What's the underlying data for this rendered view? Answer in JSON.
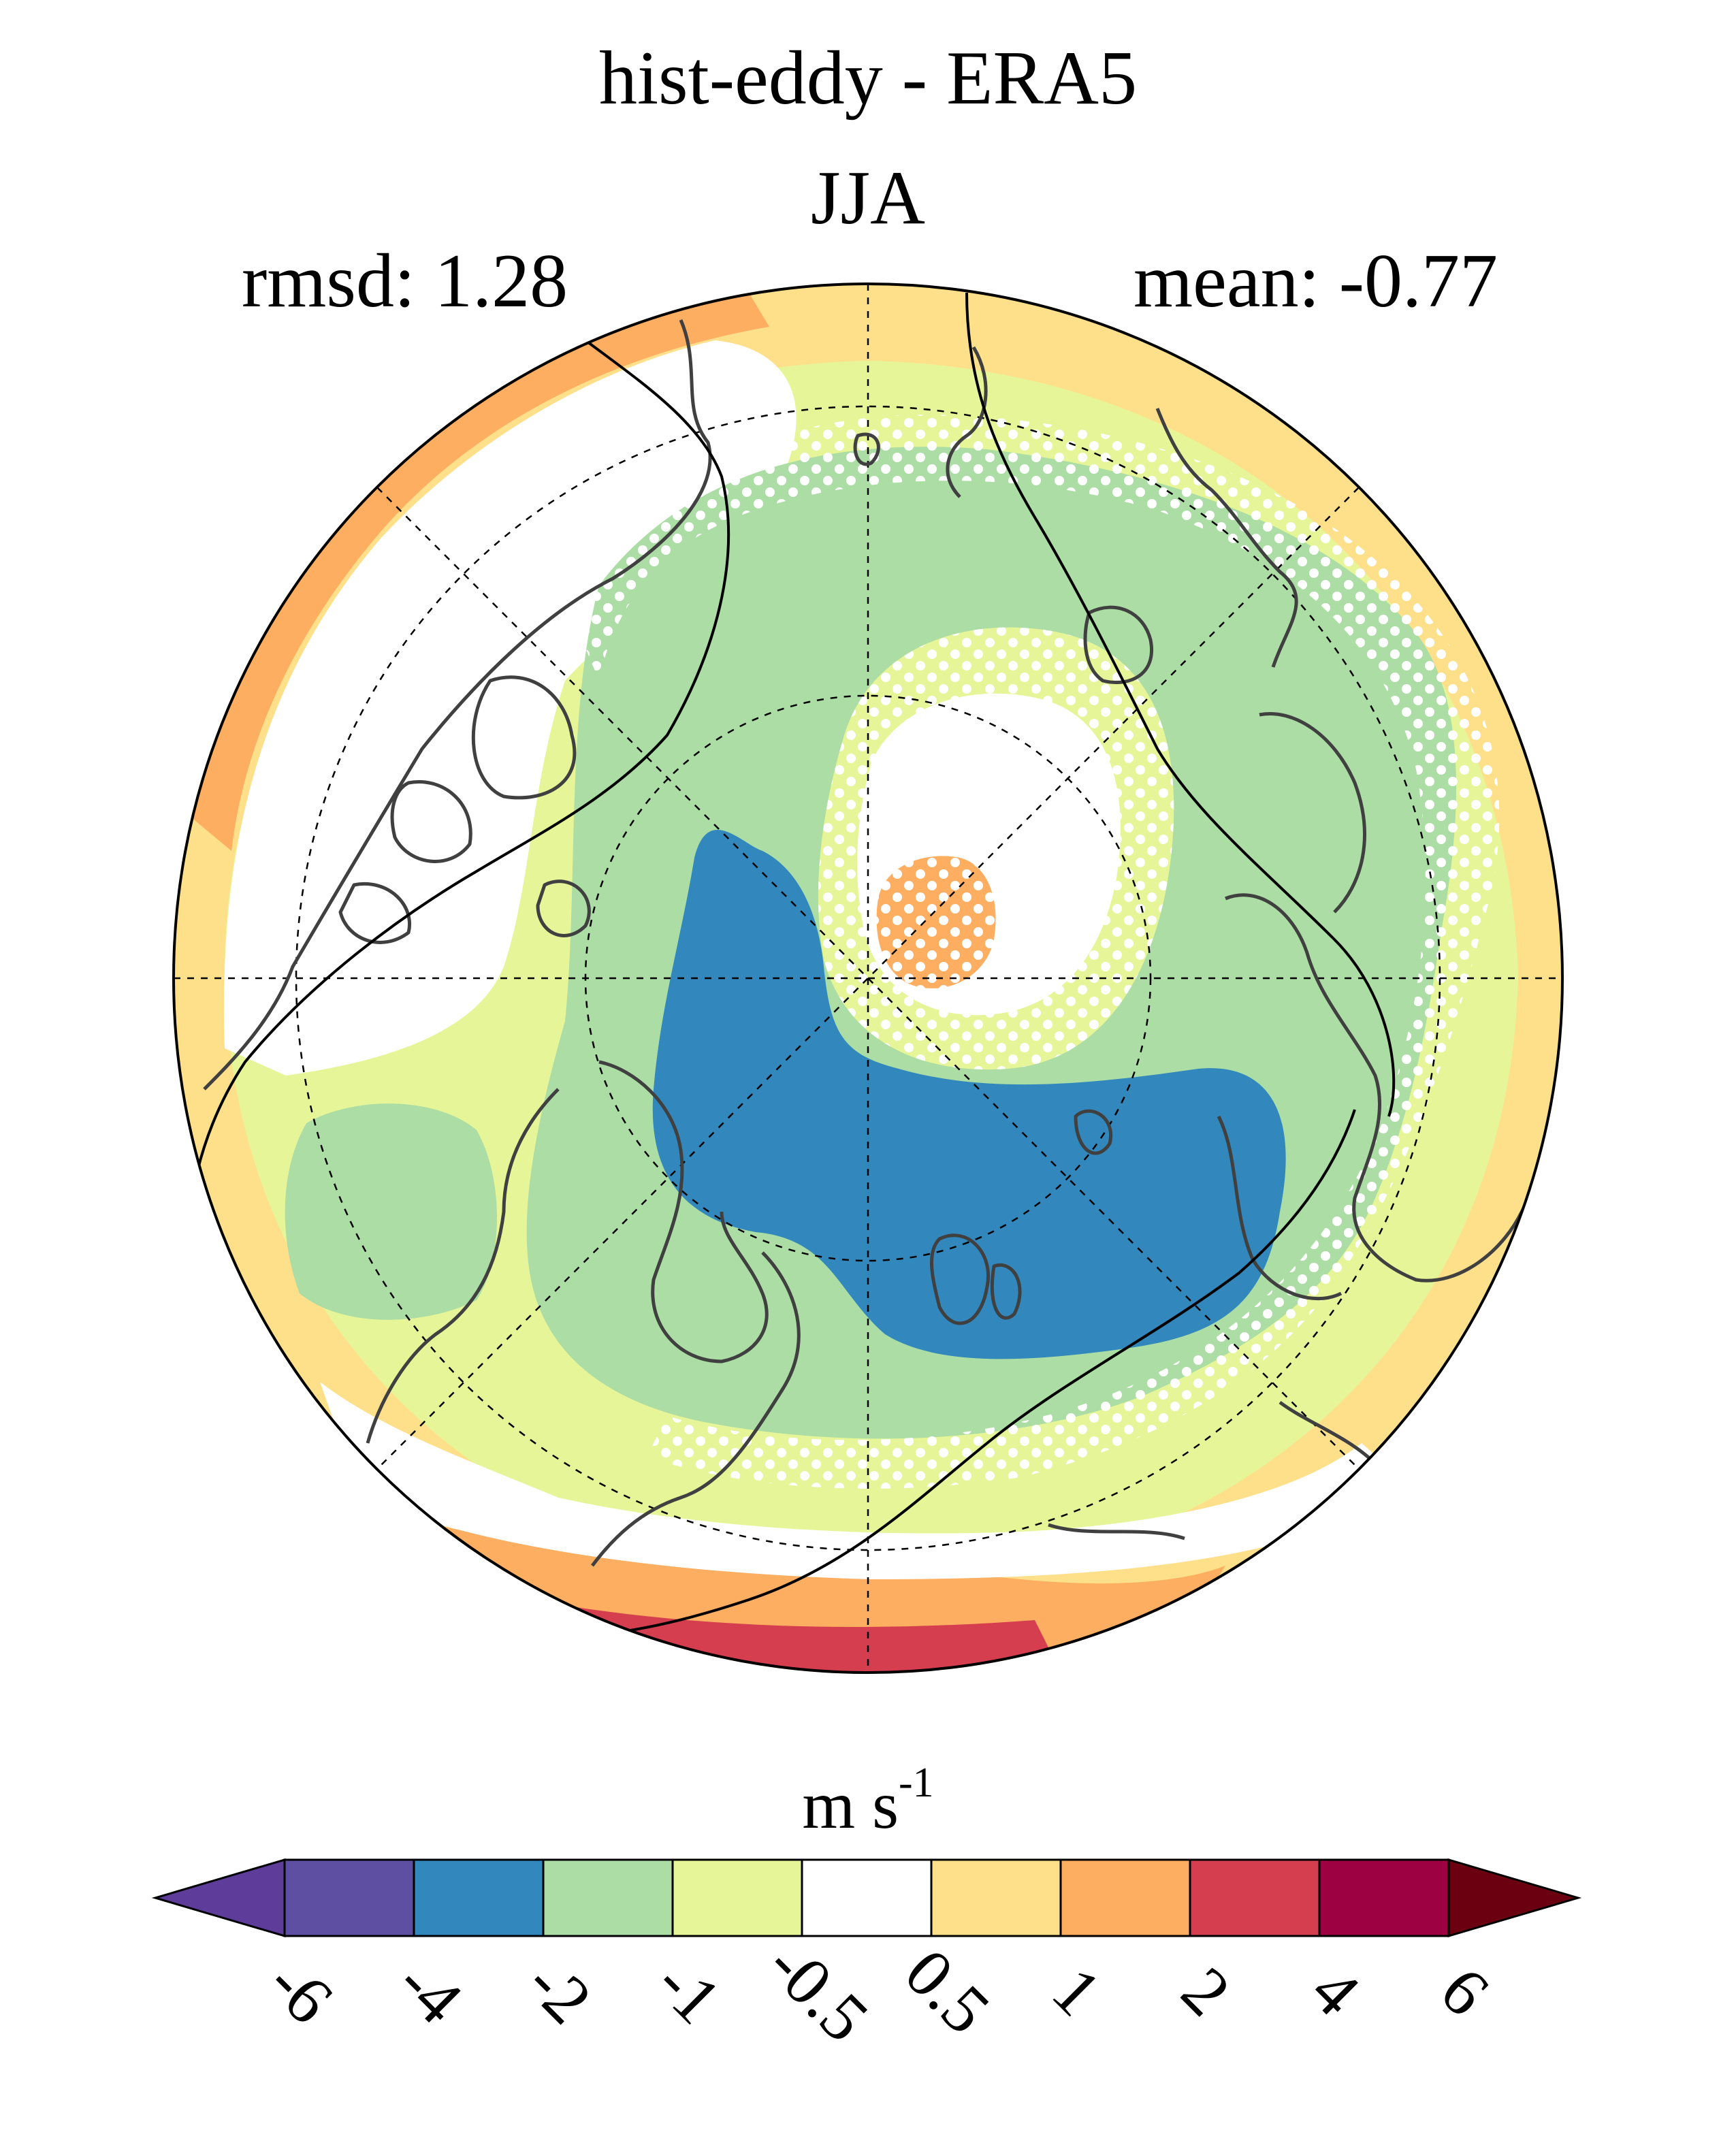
{
  "title": "hist-eddy - ERA5",
  "season": "JJA",
  "stats": {
    "rmsd_label": "rmsd: 1.28",
    "mean_label": "mean: -0.77"
  },
  "colorbar": {
    "unit_base": "m s",
    "unit_exp": "-1",
    "ticks": [
      "-6",
      "-4",
      "-2",
      "-1",
      "-0.5",
      "0.5",
      "1",
      "2",
      "4",
      "6"
    ],
    "colors": [
      "#5e3c99",
      "#5e4fa2",
      "#3288bd",
      "#abdda4",
      "#e6f598",
      "#ffffff",
      "#fee08b",
      "#fdae61",
      "#d53e4f",
      "#9e0142",
      "#6a0010"
    ]
  },
  "map": {
    "projection": "north-polar-stereographic",
    "colors": {
      "blue": "#3288bd",
      "green": "#abdda4",
      "yellow": "#e6f598",
      "orange": "#fdae61",
      "light_orange": "#fee08b",
      "red": "#d53e4f",
      "coast": "#404040",
      "stipple": "#ffffff"
    }
  }
}
